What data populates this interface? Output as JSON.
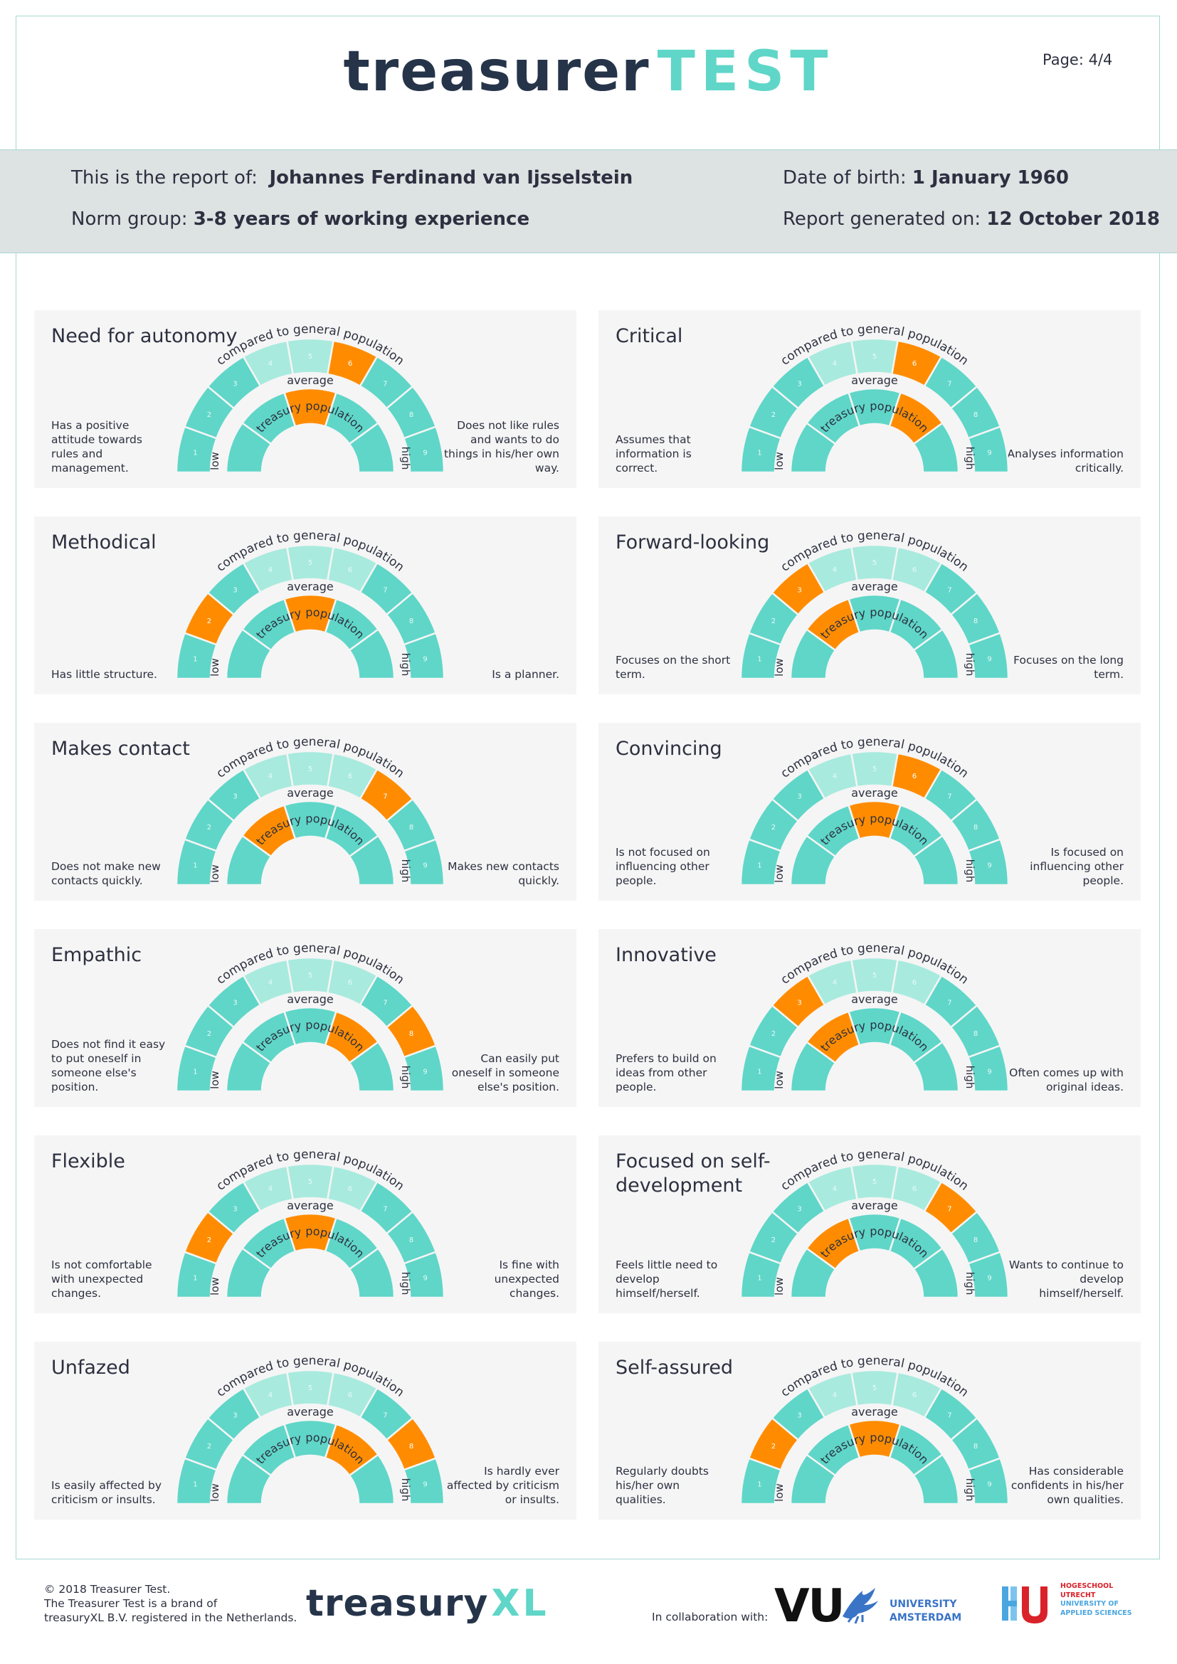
{
  "header": {
    "logo_part1": "treasurer",
    "logo_part2": "TEST",
    "page_label": "Page: 4/4"
  },
  "report": {
    "report_of_label": "This is the report of:",
    "name": "Johannes Ferdinand van Ijsselstein",
    "norm_group_label": "Norm group:",
    "norm_group": "3-8 years of working experience",
    "dob_label": "Date of birth:",
    "dob": "1 January  1960",
    "generated_label": "Report generated on:",
    "generated": "12 October 2018"
  },
  "gauge_labels": {
    "outer_arc": "compared to general population",
    "inner_arc": "treasury population",
    "average": "average",
    "low": "low",
    "high": "high",
    "outer_numbers": [
      "1",
      "2",
      "3",
      "4",
      "5",
      "6",
      "7",
      "8",
      "9"
    ]
  },
  "colors": {
    "accent_teal": "#5fd6c8",
    "light_teal": "#a8eade",
    "highlight_orange": "#ff8c00",
    "band_gray": "#dde2e2",
    "navy": "#26344a"
  },
  "traits": [
    {
      "title": "Need for autonomy",
      "left": "Has a positive attitude towards rules and management.",
      "right": "Does not like rules and wants to do things in his/her own way.",
      "general": 6,
      "treasury": 3
    },
    {
      "title": "Critical",
      "left": "Assumes that information is correct.",
      "right": "Analyses  information critically.",
      "general": 6,
      "treasury": 4
    },
    {
      "title": "Methodical",
      "left": "Has little structure.",
      "right": "Is a planner.",
      "general": 2,
      "treasury": 3
    },
    {
      "title": "Forward-looking",
      "left": "Focuses on the short term.",
      "right": "Focuses on the long term.",
      "general": 3,
      "treasury": 2
    },
    {
      "title": "Makes contact",
      "left": "Does not make new contacts quickly.",
      "right": "Makes new contacts quickly.",
      "general": 7,
      "treasury": 2
    },
    {
      "title": "Convincing",
      "left": "Is not focused on influencing other people.",
      "right": "Is focused on influencing other people.",
      "general": 6,
      "treasury": 3
    },
    {
      "title": "Empathic",
      "left": "Does not find it easy to put oneself in someone else's position.",
      "right": "Can easily put oneself in someone else's position.",
      "general": 8,
      "treasury": 4
    },
    {
      "title": "Innovative",
      "left": "Prefers to build on ideas from other people.",
      "right": "Often comes up with original ideas.",
      "general": 3,
      "treasury": 2
    },
    {
      "title": "Flexible",
      "left": "Is not comfortable with unexpected changes.",
      "right": "Is fine with unexpected changes.",
      "general": 2,
      "treasury": 3
    },
    {
      "title": "Focused on self-development",
      "left": "Feels little need to develop himself/herself.",
      "right": "Wants to continue to develop himself/herself.",
      "general": 7,
      "treasury": 2
    },
    {
      "title": "Unfazed",
      "left": "Is easily affected by criticism or insults.",
      "right": "Is hardly ever affected by criticism or insults.",
      "general": 8,
      "treasury": 4
    },
    {
      "title": "Self-assured",
      "left": "Regularly doubts his/her own qualities.",
      "right": "Has considerable confidents in his/her own qualities.",
      "general": 2,
      "treasury": 3
    }
  ],
  "footer": {
    "copyright_line1": "© 2018 Treasurer Test.",
    "copyright_line2": "The Treasurer Test is a brand of",
    "copyright_line3": "treasuryXL B.V. registered in the Netherlands.",
    "logo_part1": "treasury",
    "logo_part2": "XL",
    "collab_label": "In collaboration with:",
    "vu_mark": "VU",
    "vu_line1": "UNIVERSITY",
    "vu_line2": "AMSTERDAM",
    "hu_line1": "HOGESCHOOL",
    "hu_line2": "UTRECHT",
    "hu_line3": "UNIVERSITY OF",
    "hu_line4": "APPLIED SCIENCES"
  }
}
